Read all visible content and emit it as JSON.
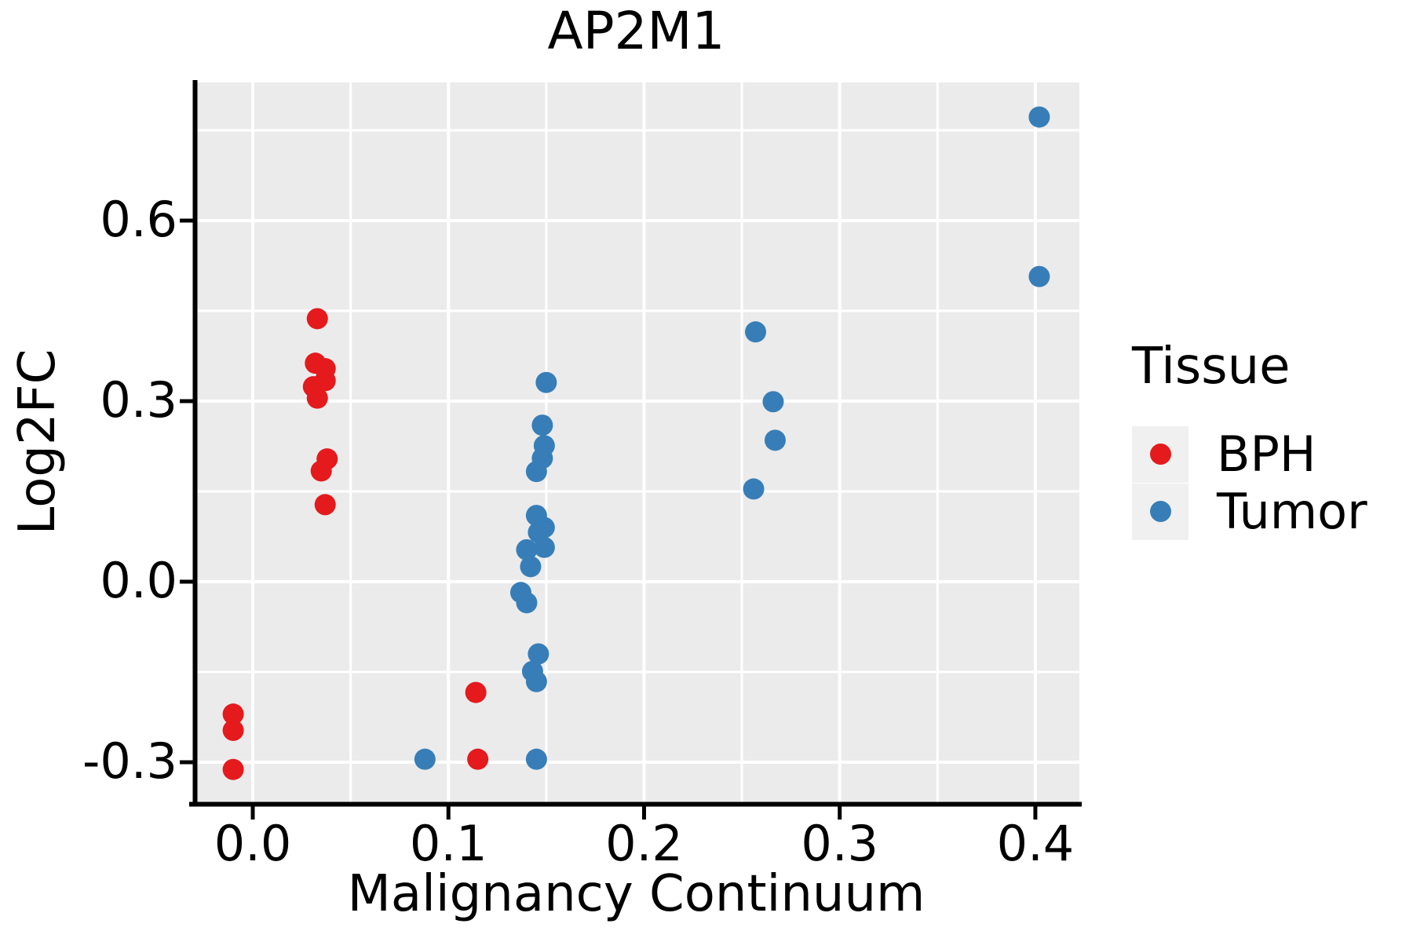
{
  "chart_data": {
    "type": "scatter",
    "title": "AP2M1",
    "xlabel": "Malignancy Continuum",
    "ylabel": "Log2FC",
    "xlim": [
      -0.0305,
      0.4225
    ],
    "ylim": [
      -0.3665,
      0.8295
    ],
    "x_ticks": [
      0.0,
      0.1,
      0.2,
      0.3,
      0.4
    ],
    "x_tick_labels": [
      "0.0",
      "0.1",
      "0.2",
      "0.3",
      "0.4"
    ],
    "x_minor_ticks": [
      0.05,
      0.15,
      0.25,
      0.35
    ],
    "y_ticks": [
      -0.3,
      0.0,
      0.3,
      0.6
    ],
    "y_tick_labels": [
      "-0.3",
      "0.0",
      "0.3",
      "0.6"
    ],
    "y_minor_ticks": [
      -0.15,
      0.15,
      0.45,
      0.75
    ],
    "grid": true,
    "legend_position": "right",
    "series": [
      {
        "name": "BPH",
        "color": "#E41A1C",
        "points": [
          [
            -0.01,
            -0.22
          ],
          [
            -0.01,
            -0.247
          ],
          [
            -0.01,
            -0.312
          ],
          [
            0.033,
            0.437
          ],
          [
            0.032,
            0.363
          ],
          [
            0.037,
            0.354
          ],
          [
            0.037,
            0.334
          ],
          [
            0.031,
            0.324
          ],
          [
            0.033,
            0.305
          ],
          [
            0.038,
            0.204
          ],
          [
            0.035,
            0.184
          ],
          [
            0.037,
            0.128
          ],
          [
            0.114,
            -0.184
          ],
          [
            0.115,
            -0.295
          ]
        ]
      },
      {
        "name": "Tumor",
        "color": "#377EB8",
        "points": [
          [
            0.088,
            -0.295
          ],
          [
            0.15,
            0.331
          ],
          [
            0.148,
            0.26
          ],
          [
            0.149,
            0.226
          ],
          [
            0.148,
            0.205
          ],
          [
            0.145,
            0.183
          ],
          [
            0.145,
            0.11
          ],
          [
            0.149,
            0.09
          ],
          [
            0.146,
            0.082
          ],
          [
            0.149,
            0.057
          ],
          [
            0.14,
            0.053
          ],
          [
            0.142,
            0.025
          ],
          [
            0.137,
            -0.018
          ],
          [
            0.14,
            -0.035
          ],
          [
            0.146,
            -0.12
          ],
          [
            0.143,
            -0.149
          ],
          [
            0.145,
            -0.166
          ],
          [
            0.145,
            -0.295
          ],
          [
            0.257,
            0.415
          ],
          [
            0.266,
            0.299
          ],
          [
            0.267,
            0.235
          ],
          [
            0.256,
            0.154
          ],
          [
            0.402,
            0.772
          ],
          [
            0.402,
            0.507
          ]
        ]
      }
    ]
  },
  "legend": {
    "title": "Tissue",
    "items": [
      {
        "label": "BPH",
        "color": "#E41A1C"
      },
      {
        "label": "Tumor",
        "color": "#377EB8"
      }
    ]
  },
  "styles": {
    "panel_bg": "#EBEBEB",
    "grid_color": "#FFFFFF",
    "axis_color": "#000000",
    "text_color": "#000000",
    "legend_key_bg": "#F0F0F0",
    "point_radius": 13.5
  }
}
